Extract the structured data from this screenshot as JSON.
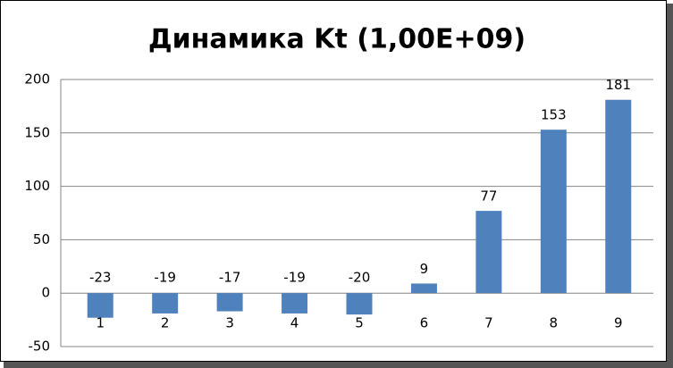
{
  "chart_data": {
    "type": "bar",
    "title": "Динамика Kt (1,00E+09)",
    "categories": [
      "1",
      "2",
      "3",
      "4",
      "5",
      "6",
      "7",
      "8",
      "9"
    ],
    "values": [
      -23,
      -19,
      -17,
      -19,
      -20,
      9,
      77,
      153,
      181
    ],
    "color": "#4f81bd",
    "ylim": [
      -50,
      200
    ],
    "yticks": [
      -50,
      0,
      50,
      100,
      150,
      200
    ],
    "grid": true
  }
}
